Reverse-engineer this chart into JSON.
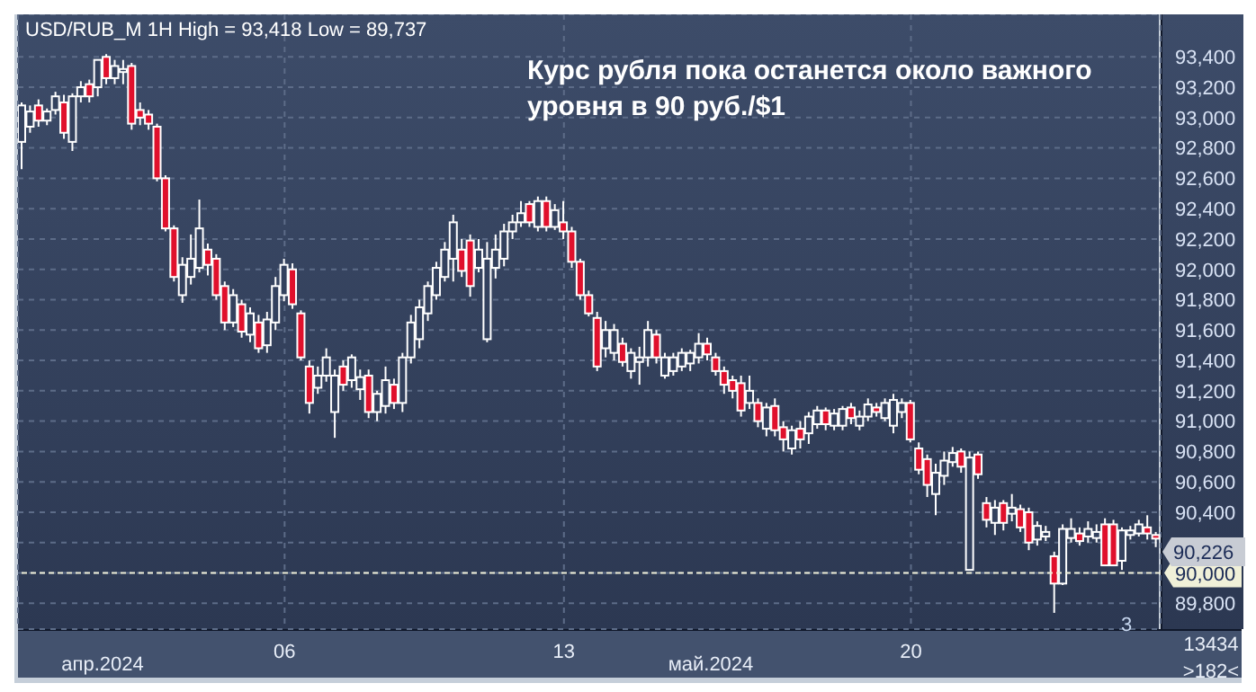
{
  "chart_data": {
    "type": "candlestick",
    "title": "Курс рубля пока останется около важного уровня в 90 руб./$1",
    "subtitle": "USD/RUB_M 1H High = 93,418 Low = 89,737",
    "categories": [
      null,
      null,
      null,
      null,
      null,
      null,
      null,
      null,
      null,
      null,
      null,
      null,
      null,
      null,
      null,
      null,
      null,
      null,
      null,
      null,
      null,
      null,
      null,
      null,
      null,
      null,
      null,
      null,
      null,
      null,
      null,
      "06",
      null,
      null,
      null,
      null,
      null,
      null,
      null,
      null,
      null,
      null,
      null,
      null,
      null,
      null,
      null,
      null,
      null,
      null,
      null,
      null,
      null,
      null,
      null,
      null,
      null,
      null,
      null,
      null,
      null,
      null,
      null,
      null,
      "13",
      null,
      null,
      null,
      null,
      null,
      null,
      null,
      null,
      null,
      null,
      null,
      null,
      null,
      null,
      null,
      null,
      null,
      null,
      null,
      null,
      null,
      null,
      null,
      null,
      null,
      null,
      null,
      null,
      null,
      null,
      null,
      null,
      null,
      null,
      null,
      null,
      null,
      null,
      null,
      null,
      "20",
      null,
      null,
      null,
      null,
      null,
      null,
      null,
      null,
      null,
      null,
      null,
      null,
      null,
      null,
      null,
      null,
      null,
      null,
      null,
      null,
      null,
      null,
      null,
      null,
      null,
      null,
      null,
      null,
      null
    ],
    "ohlc": [
      [
        92840,
        93100,
        92660,
        93080
      ],
      [
        92940,
        93080,
        92900,
        93040
      ],
      [
        93080,
        93120,
        92940,
        92980
      ],
      [
        92980,
        93060,
        92950,
        93040
      ],
      [
        93050,
        93170,
        93020,
        93140
      ],
      [
        93100,
        93150,
        92860,
        92900
      ],
      [
        92840,
        93160,
        92780,
        93140
      ],
      [
        93140,
        93240,
        93100,
        93200
      ],
      [
        93220,
        93250,
        93100,
        93140
      ],
      [
        93200,
        93380,
        93140,
        93380
      ],
      [
        93400,
        93418,
        93220,
        93260
      ],
      [
        93260,
        93380,
        93220,
        93340
      ],
      [
        93300,
        93380,
        93220,
        93320
      ],
      [
        93340,
        93360,
        92920,
        92960
      ],
      [
        93050,
        93100,
        92950,
        93000
      ],
      [
        93020,
        93050,
        92920,
        92960
      ],
      [
        92940,
        92960,
        92580,
        92600
      ],
      [
        92600,
        92620,
        92250,
        92270
      ],
      [
        92270,
        92290,
        91920,
        91950
      ],
      [
        91830,
        92080,
        91780,
        92030
      ],
      [
        91950,
        92230,
        91900,
        92070
      ],
      [
        92010,
        92460,
        91980,
        92270
      ],
      [
        92130,
        92170,
        91960,
        92030
      ],
      [
        92070,
        92100,
        91800,
        91830
      ],
      [
        91890,
        91920,
        91600,
        91650
      ],
      [
        91650,
        91870,
        91620,
        91830
      ],
      [
        91770,
        91800,
        91550,
        91590
      ],
      [
        91570,
        91750,
        91520,
        91710
      ],
      [
        91650,
        91700,
        91450,
        91480
      ],
      [
        91500,
        91720,
        91450,
        91670
      ],
      [
        91650,
        91950,
        91600,
        91890
      ],
      [
        91830,
        92070,
        91790,
        92030
      ],
      [
        92000,
        92040,
        91740,
        91770
      ],
      [
        91710,
        91730,
        91400,
        91420
      ],
      [
        91360,
        91400,
        91050,
        91120
      ],
      [
        91220,
        91360,
        91180,
        91300
      ],
      [
        91300,
        91480,
        91260,
        91420
      ],
      [
        91060,
        91340,
        90890,
        91300
      ],
      [
        91360,
        91400,
        91200,
        91240
      ],
      [
        91270,
        91440,
        91220,
        91420
      ],
      [
        91210,
        91340,
        91140,
        91290
      ],
      [
        91300,
        91340,
        91020,
        91060
      ],
      [
        91060,
        91200,
        91000,
        91180
      ],
      [
        91100,
        91360,
        91050,
        91270
      ],
      [
        91240,
        91280,
        91080,
        91120
      ],
      [
        91120,
        91450,
        91060,
        91420
      ],
      [
        91420,
        91700,
        91380,
        91650
      ],
      [
        91540,
        91800,
        91480,
        91750
      ],
      [
        91710,
        91920,
        91660,
        91890
      ],
      [
        91830,
        92050,
        91800,
        92010
      ],
      [
        91950,
        92180,
        91920,
        92130
      ],
      [
        92070,
        92360,
        91920,
        92310
      ],
      [
        92130,
        92200,
        91950,
        91990
      ],
      [
        92190,
        92230,
        91820,
        91890
      ],
      [
        92010,
        92200,
        91980,
        92130
      ],
      [
        91540,
        92180,
        91520,
        92070
      ],
      [
        92010,
        92230,
        91940,
        92130
      ],
      [
        92070,
        92300,
        92020,
        92250
      ],
      [
        92250,
        92360,
        92200,
        92310
      ],
      [
        92310,
        92450,
        92280,
        92370
      ],
      [
        92430,
        92450,
        92280,
        92310
      ],
      [
        92280,
        92480,
        92250,
        92450
      ],
      [
        92450,
        92480,
        92250,
        92280
      ],
      [
        92280,
        92430,
        92260,
        92390
      ],
      [
        92310,
        92450,
        92200,
        92250
      ],
      [
        92250,
        92280,
        92010,
        92050
      ],
      [
        92050,
        92070,
        91800,
        91830
      ],
      [
        91830,
        91860,
        91690,
        91710
      ],
      [
        91680,
        91720,
        91330,
        91360
      ],
      [
        91480,
        91660,
        91420,
        91600
      ],
      [
        91450,
        91640,
        91400,
        91600
      ],
      [
        91510,
        91550,
        91360,
        91390
      ],
      [
        91330,
        91480,
        91280,
        91450
      ],
      [
        91390,
        91490,
        91240,
        91420
      ],
      [
        91420,
        91660,
        91360,
        91600
      ],
      [
        91570,
        91600,
        91380,
        91420
      ],
      [
        91300,
        91450,
        91280,
        91420
      ],
      [
        91330,
        91450,
        91300,
        91420
      ],
      [
        91360,
        91480,
        91330,
        91450
      ],
      [
        91380,
        91470,
        91330,
        91450
      ],
      [
        91420,
        91580,
        91380,
        91510
      ],
      [
        91510,
        91550,
        91400,
        91440
      ],
      [
        91420,
        91450,
        91300,
        91330
      ],
      [
        91330,
        91360,
        91180,
        91240
      ],
      [
        91270,
        91300,
        91150,
        91200
      ],
      [
        91250,
        91300,
        91030,
        91070
      ],
      [
        91120,
        91300,
        91080,
        91200
      ],
      [
        91120,
        91150,
        90960,
        91000
      ],
      [
        90950,
        91120,
        90900,
        91090
      ],
      [
        91100,
        91150,
        90900,
        90940
      ],
      [
        90960,
        91000,
        90800,
        90880
      ],
      [
        90820,
        90970,
        90780,
        90940
      ],
      [
        90950,
        91000,
        90820,
        90880
      ],
      [
        90920,
        91060,
        90850,
        91030
      ],
      [
        90980,
        91100,
        90950,
        91070
      ],
      [
        91070,
        91090,
        90940,
        90980
      ],
      [
        90970,
        91080,
        90940,
        91050
      ],
      [
        90970,
        91100,
        90940,
        91080
      ],
      [
        91090,
        91120,
        90980,
        91020
      ],
      [
        90970,
        91070,
        90940,
        91030
      ],
      [
        91030,
        91150,
        91000,
        91110
      ],
      [
        91090,
        91120,
        91030,
        91060
      ],
      [
        91020,
        91150,
        91000,
        91120
      ],
      [
        90970,
        91180,
        90920,
        91140
      ],
      [
        91060,
        91150,
        91020,
        91120
      ],
      [
        91120,
        91140,
        90860,
        90880
      ],
      [
        90820,
        90860,
        90650,
        90680
      ],
      [
        90750,
        90780,
        90500,
        90580
      ],
      [
        90520,
        90720,
        90380,
        90660
      ],
      [
        90640,
        90800,
        90580,
        90740
      ],
      [
        90730,
        90830,
        90700,
        90790
      ],
      [
        90800,
        90820,
        90660,
        90700
      ],
      [
        90020,
        90800,
        90020,
        90760
      ],
      [
        90780,
        90800,
        90620,
        90650
      ],
      [
        90460,
        90500,
        90300,
        90350
      ],
      [
        90330,
        90480,
        90250,
        90430
      ],
      [
        90460,
        90480,
        90280,
        90330
      ],
      [
        90390,
        90520,
        90340,
        90430
      ],
      [
        90420,
        90450,
        90270,
        90300
      ],
      [
        90400,
        90430,
        90150,
        90200
      ],
      [
        90220,
        90340,
        90180,
        90310
      ],
      [
        90240,
        90310,
        90210,
        90270
      ],
      [
        90110,
        90140,
        89737,
        89930
      ],
      [
        89930,
        90320,
        89920,
        90290
      ],
      [
        90230,
        90360,
        90200,
        90290
      ],
      [
        90260,
        90300,
        90180,
        90210
      ],
      [
        90240,
        90340,
        90200,
        90290
      ],
      [
        90230,
        90320,
        90200,
        90270
      ],
      [
        90320,
        90360,
        90050,
        90050
      ],
      [
        90320,
        90350,
        90050,
        90050
      ],
      [
        90080,
        90300,
        90020,
        90280
      ],
      [
        90250,
        90310,
        90220,
        90280
      ],
      [
        90260,
        90350,
        90240,
        90320
      ],
      [
        90300,
        90380,
        90220,
        90260
      ],
      [
        90250,
        90270,
        90170,
        90226
      ]
    ],
    "ylim": [
      89630,
      93680
    ],
    "yticks": [
      {
        "value": 89800,
        "label": "89,800"
      },
      {
        "value": 90000,
        "label": null
      },
      {
        "value": 90200,
        "label": null
      },
      {
        "value": 90400,
        "label": "90,400"
      },
      {
        "value": 90600,
        "label": "90,600"
      },
      {
        "value": 90800,
        "label": "90,800"
      },
      {
        "value": 91000,
        "label": "91,000"
      },
      {
        "value": 91200,
        "label": "91,200"
      },
      {
        "value": 91400,
        "label": "91,400"
      },
      {
        "value": 91600,
        "label": "91,600"
      },
      {
        "value": 91800,
        "label": "91,800"
      },
      {
        "value": 92000,
        "label": "92,000"
      },
      {
        "value": 92200,
        "label": "92,200"
      },
      {
        "value": 92400,
        "label": "92,400"
      },
      {
        "value": 92600,
        "label": "92,600"
      },
      {
        "value": 92800,
        "label": "92,800"
      },
      {
        "value": 93000,
        "label": "93,000"
      },
      {
        "value": 93200,
        "label": "93,200"
      },
      {
        "value": 93400,
        "label": "93,400"
      }
    ],
    "ref_lines": [
      {
        "axis": "y",
        "value": 90000,
        "label": "90,000",
        "line_style": "dashed",
        "color": "#f0f0d8"
      }
    ],
    "annotations": [
      "апр.2024",
      "май.2024",
      "3",
      "13434",
      ">182<",
      "90,226"
    ],
    "grid": true
  }
}
